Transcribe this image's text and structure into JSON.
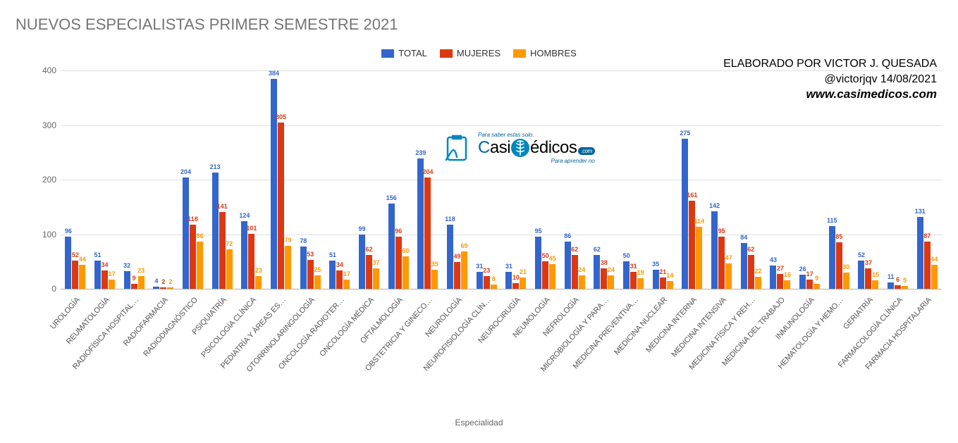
{
  "title": "NUEVOS ESPECIALISTAS PRIMER SEMESTRE 2021",
  "attribution": {
    "line1": "ELABORADO POR VICTOR J. QUESADA",
    "line2": "@victorjqv 14/08/2021",
    "line3": "www.casimedicos.com"
  },
  "legend": [
    {
      "label": "TOTAL",
      "color": "#3366cc"
    },
    {
      "label": "MUJERES",
      "color": "#dc3912"
    },
    {
      "label": "HOMBRES",
      "color": "#ff9900"
    }
  ],
  "logo": {
    "tag_top": "Para saber estas solo.",
    "brand": "CasiMédicos",
    "com": ".com",
    "tag_bottom": "Para aprender no",
    "icon_color": "#0088bb"
  },
  "chart": {
    "type": "bar",
    "xlabel": "Especialidad",
    "ylim": [
      0,
      400
    ],
    "ytick_step": 100,
    "grid_color": "#e0e0e0",
    "background_color": "#ffffff",
    "label_fontsize": 9,
    "series_colors": {
      "total": "#3366cc",
      "mujeres": "#dc3912",
      "hombres": "#ff9900"
    },
    "categories": [
      {
        "label": "UROLOGÍA",
        "total": 96,
        "mujeres": 52,
        "hombres": 44
      },
      {
        "label": "REUMATOLOGÍA",
        "total": 51,
        "mujeres": 34,
        "hombres": 17
      },
      {
        "label": "RADIOFÍSICA HOSPITAL…",
        "total": 32,
        "mujeres": 9,
        "hombres": 23
      },
      {
        "label": "RADIOFARMACIA",
        "total": 4,
        "mujeres": 2,
        "hombres": 2
      },
      {
        "label": "RADIODIAGNÓSTICO",
        "total": 204,
        "mujeres": 118,
        "hombres": 86
      },
      {
        "label": "PSIQUIATRÍA",
        "total": 213,
        "mujeres": 141,
        "hombres": 72
      },
      {
        "label": "PSICOLOGÍA CLÍNICA",
        "total": 124,
        "mujeres": 101,
        "hombres": 23
      },
      {
        "label": "PEDIATRÍA Y ÁREAS ES…",
        "total": 384,
        "mujeres": 305,
        "hombres": 79
      },
      {
        "label": "OTORRINOLARINGOLOGÍA",
        "total": 78,
        "mujeres": 53,
        "hombres": 25
      },
      {
        "label": "ONCOLOGÍA RADIOTER…",
        "total": 51,
        "mujeres": 34,
        "hombres": 17
      },
      {
        "label": "ONCOLOGÍA MÉDICA",
        "total": 99,
        "mujeres": 62,
        "hombres": 37
      },
      {
        "label": "OFTALMOLOGÍA",
        "total": 156,
        "mujeres": 96,
        "hombres": 60
      },
      {
        "label": "OBSTETRICIA Y GINECO…",
        "total": 239,
        "mujeres": 204,
        "hombres": 35
      },
      {
        "label": "NEUROLOGÍA",
        "total": 118,
        "mujeres": 49,
        "hombres": 69
      },
      {
        "label": "NEUROFISIOLOGÍA CLÍN…",
        "total": 31,
        "mujeres": 23,
        "hombres": 8
      },
      {
        "label": "NEUROCIRUGÍA",
        "total": 31,
        "mujeres": 10,
        "hombres": 21
      },
      {
        "label": "NEUMOLOGÍA",
        "total": 95,
        "mujeres": 50,
        "hombres": 45
      },
      {
        "label": "NEFROLOGÍA",
        "total": 86,
        "mujeres": 62,
        "hombres": 24
      },
      {
        "label": "MICROBIOLOGÍA Y PARA…",
        "total": 62,
        "mujeres": 38,
        "hombres": 24
      },
      {
        "label": "MEDICINA PREVENTIVA…",
        "total": 50,
        "mujeres": 31,
        "hombres": 19
      },
      {
        "label": "MEDICINA NUCLEAR",
        "total": 35,
        "mujeres": 21,
        "hombres": 14
      },
      {
        "label": "MEDICINA INTERNA",
        "total": 275,
        "mujeres": 161,
        "hombres": 114
      },
      {
        "label": "MEDICINA INTENSIVA",
        "total": 142,
        "mujeres": 95,
        "hombres": 47
      },
      {
        "label": "MEDICINA FÍSICA Y REH…",
        "total": 84,
        "mujeres": 62,
        "hombres": 22
      },
      {
        "label": "MEDICINA DEL TRABAJO",
        "total": 43,
        "mujeres": 27,
        "hombres": 16
      },
      {
        "label": "INMUNOLOGÍA",
        "total": 26,
        "mujeres": 17,
        "hombres": 9
      },
      {
        "label": "HEMATOLOGÍA Y HEMO…",
        "total": 115,
        "mujeres": 85,
        "hombres": 30
      },
      {
        "label": "GERIATRÍA",
        "total": 52,
        "mujeres": 37,
        "hombres": 15
      },
      {
        "label": "FARMACOLOGÍA CLÍNICA",
        "total": 11,
        "mujeres": 6,
        "hombres": 5
      },
      {
        "label": "FARMACIA HOSPITALARIA",
        "total": 131,
        "mujeres": 87,
        "hombres": 44
      }
    ]
  }
}
